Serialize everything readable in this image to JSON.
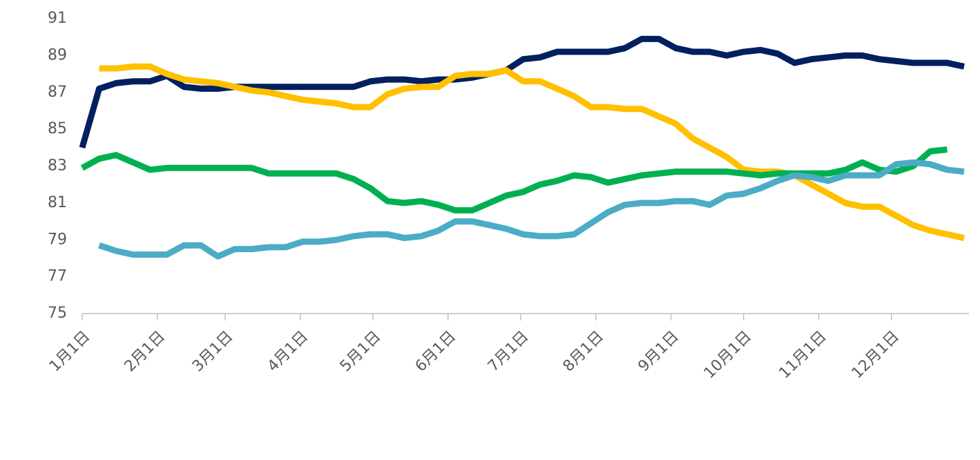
{
  "chart_data": {
    "type": "line",
    "x": [
      0,
      7,
      14,
      21,
      28,
      35,
      42,
      49,
      56,
      63,
      70,
      77,
      84,
      91,
      98,
      105,
      112,
      119,
      126,
      133,
      140,
      147,
      154,
      161,
      168,
      175,
      182,
      189,
      196,
      203,
      210,
      217,
      224,
      231,
      238,
      245,
      252,
      259,
      266,
      273,
      280,
      287,
      294,
      301,
      308,
      315,
      322,
      329,
      336,
      343,
      350,
      357,
      364
    ],
    "xlim": [
      0,
      366
    ],
    "xticks": [
      {
        "value": 0,
        "label": "1月1日"
      },
      {
        "value": 31,
        "label": "2月1日"
      },
      {
        "value": 59,
        "label": "3月1日"
      },
      {
        "value": 90,
        "label": "4月1日"
      },
      {
        "value": 120,
        "label": "5月1日"
      },
      {
        "value": 151,
        "label": "6月1日"
      },
      {
        "value": 181,
        "label": "7月1日"
      },
      {
        "value": 212,
        "label": "8月1日"
      },
      {
        "value": 243,
        "label": "9月1日"
      },
      {
        "value": 273,
        "label": "10月1日"
      },
      {
        "value": 304,
        "label": "11月1日"
      },
      {
        "value": 334,
        "label": "12月1日"
      }
    ],
    "ylim": [
      75,
      91
    ],
    "yticks": [
      75,
      77,
      79,
      81,
      83,
      85,
      87,
      89,
      91
    ],
    "grid": false,
    "series": [
      {
        "color": "#002060",
        "values": [
          84.0,
          87.2,
          87.5,
          87.6,
          87.6,
          87.9,
          87.3,
          87.2,
          87.2,
          87.3,
          87.3,
          87.3,
          87.3,
          87.3,
          87.3,
          87.3,
          87.3,
          87.6,
          87.7,
          87.7,
          87.6,
          87.7,
          87.7,
          87.8,
          88.0,
          88.2,
          88.8,
          88.9,
          89.2,
          89.2,
          89.2,
          89.2,
          89.4,
          89.9,
          89.9,
          89.4,
          89.2,
          89.2,
          89.0,
          89.2,
          89.3,
          89.1,
          88.6,
          88.8,
          88.9,
          89.0,
          89.0,
          88.8,
          88.7,
          88.6,
          88.6,
          88.6,
          88.4
        ]
      },
      {
        "color": "#ffc000",
        "values": [
          null,
          88.3,
          88.3,
          88.4,
          88.4,
          88.0,
          87.7,
          87.6,
          87.5,
          87.3,
          87.1,
          87.0,
          86.8,
          86.6,
          86.5,
          86.4,
          86.2,
          86.2,
          86.9,
          87.2,
          87.3,
          87.3,
          87.9,
          88.0,
          88.0,
          88.2,
          87.6,
          87.6,
          87.2,
          86.8,
          86.2,
          86.2,
          86.1,
          86.1,
          85.7,
          85.3,
          84.5,
          84.0,
          83.5,
          82.8,
          82.7,
          82.7,
          82.5,
          82.0,
          81.5,
          81.0,
          80.8,
          80.8,
          80.3,
          79.8,
          79.5,
          79.3,
          79.1
        ]
      },
      {
        "color": "#00b050",
        "values": [
          82.9,
          83.4,
          83.6,
          83.2,
          82.8,
          82.9,
          82.9,
          82.9,
          82.9,
          82.9,
          82.9,
          82.6,
          82.6,
          82.6,
          82.6,
          82.6,
          82.3,
          81.8,
          81.1,
          81.0,
          81.1,
          80.9,
          80.6,
          80.6,
          81.0,
          81.4,
          81.6,
          82.0,
          82.2,
          82.5,
          82.4,
          82.1,
          82.3,
          82.5,
          82.6,
          82.7,
          82.7,
          82.7,
          82.7,
          82.6,
          82.5,
          82.6,
          82.6,
          82.6,
          82.6,
          82.8,
          83.2,
          82.8,
          82.7,
          83.0,
          83.8,
          83.9,
          null
        ]
      },
      {
        "color": "#4bacc6",
        "values": [
          null,
          78.7,
          78.4,
          78.2,
          78.2,
          78.2,
          78.7,
          78.7,
          78.1,
          78.5,
          78.5,
          78.6,
          78.6,
          78.9,
          78.9,
          79.0,
          79.2,
          79.3,
          79.3,
          79.1,
          79.2,
          79.5,
          80.0,
          80.0,
          79.8,
          79.6,
          79.3,
          79.2,
          79.2,
          79.3,
          79.9,
          80.5,
          80.9,
          81.0,
          81.0,
          81.1,
          81.1,
          80.9,
          81.4,
          81.5,
          81.8,
          82.2,
          82.5,
          82.4,
          82.2,
          82.5,
          82.5,
          82.5,
          83.1,
          83.2,
          83.1,
          82.8,
          82.7
        ]
      }
    ]
  }
}
